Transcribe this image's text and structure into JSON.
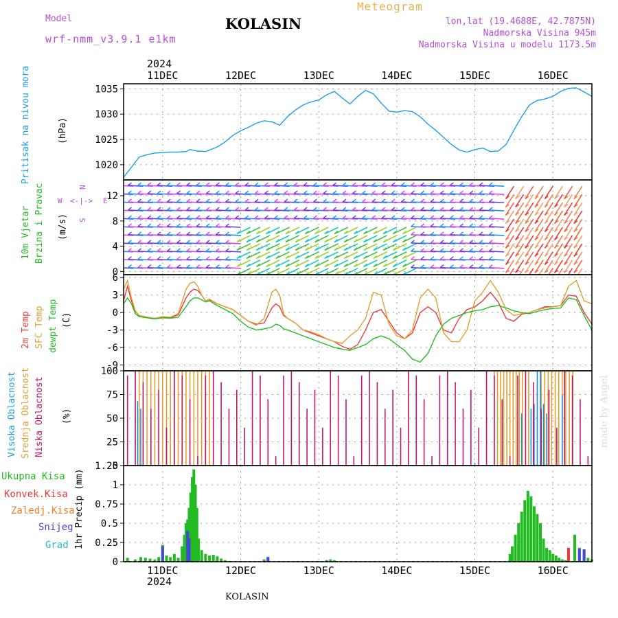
{
  "header": {
    "model_label": "Model",
    "model_name": "wrf-nmm_v3.9.1 e1km",
    "station": "KOLASIN",
    "meteogram": "Meteogram",
    "lonlat": "lon,lat (19.4688E, 42.7875N)",
    "elevation": "Nadmorska Visina 945m",
    "model_elevation": "Nadmorska Visina u modelu 1173.5m",
    "year_top": "2024",
    "year_bottom": "2024",
    "footer_station": "KOLASIN",
    "watermark": "made by Angel"
  },
  "colors": {
    "pressure": "#1aa0e8",
    "temp2m": "#e83a3a",
    "sfc": "#e0a030",
    "dew": "#22bb22",
    "high_cloud": "#1e8ee0",
    "mid_cloud": "#e0a030",
    "low_cloud": "#c0166e",
    "total_precip": "#22bb22",
    "conv_precip": "#e83a3a",
    "frozen": "#f08030",
    "snow": "#4646d8",
    "hail": "#22c0c0",
    "label_magenta": "#b44fd6"
  },
  "chart_data": [
    {
      "type": "line",
      "panel": "pressure",
      "ylabel": "Pritisak na nivou mora",
      "unit": "(hPa)",
      "x_days": [
        "11DEC",
        "12DEC",
        "13DEC",
        "14DEC",
        "15DEC",
        "16DEC"
      ],
      "xlim": [
        -0.5,
        5.5
      ],
      "ylim": [
        1017,
        1036
      ],
      "yticks": [
        1020,
        1025,
        1030,
        1035
      ],
      "grid": true,
      "x": [
        -0.5,
        -0.4,
        -0.3,
        -0.2,
        -0.1,
        0,
        0.1,
        0.2,
        0.3,
        0.35,
        0.45,
        0.55,
        0.7,
        0.8,
        0.9,
        1.0,
        1.1,
        1.2,
        1.3,
        1.4,
        1.5,
        1.6,
        1.7,
        1.8,
        1.9,
        2.0,
        2.1,
        2.2,
        2.3,
        2.4,
        2.5,
        2.6,
        2.7,
        2.8,
        2.9,
        3.0,
        3.1,
        3.2,
        3.3,
        3.4,
        3.5,
        3.6,
        3.7,
        3.8,
        3.9,
        4.0,
        4.1,
        4.2,
        4.3,
        4.4,
        4.5,
        4.6,
        4.7,
        4.8,
        4.9,
        5.0,
        5.1,
        5.2,
        5.3,
        5.4,
        5.5
      ],
      "values": [
        1017.5,
        1019.5,
        1021.5,
        1022.0,
        1022.3,
        1022.4,
        1022.5,
        1022.5,
        1022.6,
        1023.0,
        1022.7,
        1022.6,
        1023.5,
        1024.5,
        1025.8,
        1026.7,
        1027.4,
        1028.2,
        1028.7,
        1028.5,
        1027.8,
        1029.5,
        1030.8,
        1031.8,
        1032.4,
        1032.8,
        1033.8,
        1034.5,
        1033.2,
        1032.0,
        1033.5,
        1034.7,
        1034.0,
        1032.2,
        1030.6,
        1030.4,
        1030.7,
        1030.5,
        1029.5,
        1028.0,
        1026.8,
        1025.4,
        1024.0,
        1022.9,
        1022.5,
        1023.0,
        1023.3,
        1022.6,
        1022.7,
        1024.0,
        1026.8,
        1029.5,
        1031.8,
        1032.7,
        1033.0,
        1033.5,
        1034.5,
        1035.1,
        1035.2,
        1034.4,
        1033.5
      ]
    },
    {
      "type": "scatter",
      "panel": "wind",
      "ylabel_1": "10m Vjetar",
      "ylabel_2": "Brzina i Pravac",
      "unit": "(m/s)",
      "compass_north": "N",
      "compass_west": "W",
      "compass_east": "E",
      "compass_south": "S",
      "ylim": [
        -0.5,
        14.5
      ],
      "yticks": [
        0,
        4,
        8,
        12
      ],
      "grid": true
    },
    {
      "type": "line",
      "panel": "temperature",
      "ylabel_t2m": "2m Temp",
      "ylabel_sfc": "SFC Temp",
      "ylabel_dew": "dewpt Temp",
      "unit": "(C)",
      "ylim": [
        -10,
        6.5
      ],
      "yticks": [
        -9,
        -6,
        -3,
        0,
        3,
        6
      ],
      "grid": true,
      "x": [
        -0.5,
        -0.45,
        -0.4,
        -0.35,
        -0.3,
        -0.2,
        -0.1,
        0,
        0.1,
        0.2,
        0.3,
        0.35,
        0.4,
        0.45,
        0.5,
        0.55,
        0.6,
        0.7,
        0.8,
        0.9,
        1.0,
        1.1,
        1.2,
        1.3,
        1.4,
        1.45,
        1.5,
        1.55,
        1.6,
        1.7,
        1.8,
        1.9,
        2.0,
        2.1,
        2.2,
        2.3,
        2.4,
        2.5,
        2.6,
        2.7,
        2.8,
        2.9,
        3.0,
        3.1,
        3.2,
        3.3,
        3.4,
        3.5,
        3.6,
        3.7,
        3.8,
        3.9,
        4.0,
        4.1,
        4.2,
        4.3,
        4.4,
        4.5,
        4.6,
        4.7,
        4.8,
        4.9,
        5.0,
        5.1,
        5.2,
        5.3,
        5.4,
        5.5
      ],
      "series": [
        {
          "name": "2m Temp",
          "values": [
            2.0,
            4.5,
            2.0,
            0.2,
            -0.5,
            -0.8,
            -1.0,
            -0.8,
            -0.9,
            -0.4,
            2.5,
            3.5,
            4.0,
            3.8,
            3.0,
            2.0,
            2.2,
            1.5,
            1.0,
            0.5,
            -0.5,
            -1.5,
            -2.0,
            -1.8,
            0.8,
            1.5,
            1.0,
            -0.5,
            -1.0,
            -1.8,
            -3.0,
            -3.5,
            -4.0,
            -4.5,
            -5.0,
            -5.8,
            -6.3,
            -5.5,
            -3.0,
            0.0,
            0.5,
            -1.5,
            -3.5,
            -4.5,
            -3.5,
            0.0,
            1.0,
            0.0,
            -3.0,
            -3.5,
            -1.0,
            0.5,
            1.0,
            2.0,
            3.5,
            1.8,
            -1.0,
            -1.5,
            -0.3,
            0.0,
            0.5,
            1.0,
            1.0,
            1.2,
            3.0,
            2.8,
            0.0,
            -2.0
          ]
        },
        {
          "name": "SFC Temp",
          "values": [
            4.0,
            5.5,
            2.5,
            0.3,
            -0.5,
            -0.8,
            -1.0,
            -0.7,
            -0.8,
            -0.2,
            4.0,
            5.0,
            5.3,
            4.5,
            3.0,
            2.0,
            2.3,
            1.5,
            1.0,
            0.5,
            -0.5,
            -1.5,
            -2.2,
            -1.0,
            3.5,
            4.0,
            3.0,
            -0.3,
            -1.0,
            -1.8,
            -3.0,
            -3.3,
            -3.8,
            -4.5,
            -5.0,
            -5.3,
            -4.0,
            -3.0,
            -1.0,
            3.5,
            3.0,
            -2.0,
            -4.0,
            -4.5,
            -3.0,
            2.5,
            4.0,
            2.5,
            -3.5,
            -5.0,
            -5.0,
            -3.0,
            2.0,
            3.5,
            5.5,
            3.5,
            0.5,
            -0.5,
            -0.2,
            0.0,
            0.5,
            0.8,
            1.0,
            1.2,
            4.5,
            5.5,
            2.0,
            1.5
          ]
        },
        {
          "name": "dewpt Temp",
          "values": [
            1.5,
            2.5,
            1.5,
            -0.2,
            -0.7,
            -0.9,
            -1.1,
            -0.9,
            -1.0,
            -0.8,
            1.0,
            2.0,
            2.5,
            2.5,
            2.2,
            1.8,
            2.0,
            1.2,
            0.5,
            -0.2,
            -1.5,
            -2.5,
            -3.0,
            -2.8,
            -2.5,
            -2.0,
            -2.2,
            -2.8,
            -3.0,
            -3.5,
            -4.0,
            -4.5,
            -5.0,
            -5.5,
            -6.0,
            -6.3,
            -6.5,
            -6.0,
            -5.5,
            -4.5,
            -4.0,
            -4.5,
            -5.5,
            -6.5,
            -8.0,
            -8.5,
            -7.0,
            -4.0,
            -2.0,
            -1.0,
            -0.5,
            0.0,
            0.3,
            0.5,
            1.0,
            1.2,
            0.8,
            0.3,
            0.0,
            -0.2,
            0.2,
            0.5,
            0.7,
            0.8,
            2.5,
            2.2,
            -0.5,
            -3.0
          ]
        }
      ]
    },
    {
      "type": "bar",
      "panel": "clouds",
      "ylabel_high": "Visoka Oblacnost",
      "ylabel_mid": "Srednja Oblacnost",
      "ylabel_low": "Niska Oblacnost",
      "unit": "(%)",
      "ylim": [
        0,
        100
      ],
      "yticks": [
        0,
        25,
        50,
        75,
        100
      ],
      "grid": true
    },
    {
      "type": "bar",
      "panel": "precip",
      "legend": [
        "Ukupna Kisa",
        "Konvek.Kisa",
        "Zaledj.Kisa",
        "Snijeg",
        "Grad"
      ],
      "unit": "1hr Precip (mm)",
      "ylim": [
        0,
        1.25
      ],
      "yticks": [
        0,
        0.25,
        0.5,
        0.75,
        1,
        1.25
      ],
      "ytick_labels": [
        "0",
        "0.25",
        "0.5",
        "0.75",
        "1",
        "1.25"
      ],
      "grid": true,
      "x": [
        -0.45,
        -0.35,
        -0.28,
        -0.22,
        -0.16,
        -0.1,
        -0.05,
        0,
        0.05,
        0.1,
        0.15,
        0.2,
        0.25,
        0.28,
        0.3,
        0.32,
        0.34,
        0.36,
        0.38,
        0.4,
        0.42,
        0.44,
        0.46,
        0.5,
        0.55,
        0.6,
        0.65,
        0.7,
        0.75,
        0.8,
        0.85,
        1.3,
        1.35,
        2.1,
        2.15,
        2.2,
        4.45,
        4.48,
        4.52,
        4.56,
        4.6,
        4.64,
        4.68,
        4.72,
        4.76,
        4.8,
        4.84,
        4.88,
        4.92,
        4.96,
        5.0,
        5.04,
        5.08,
        5.12,
        5.16,
        5.2,
        5.28,
        5.34,
        5.4,
        5.45,
        5.5
      ],
      "values": [
        0.05,
        0.03,
        0.06,
        0.05,
        0.04,
        0.03,
        0.06,
        0.22,
        0.08,
        0.06,
        0.1,
        0.05,
        0.2,
        0.35,
        0.5,
        0.55,
        0.7,
        0.9,
        1.1,
        1.2,
        1.0,
        0.7,
        0.3,
        0.15,
        0.1,
        0.08,
        0.09,
        0.07,
        0.04,
        0.02,
        0.01,
        0.03,
        0.06,
        0.02,
        0.03,
        0.02,
        0.1,
        0.2,
        0.35,
        0.5,
        0.65,
        0.8,
        0.92,
        0.85,
        0.72,
        0.62,
        0.5,
        0.3,
        0.18,
        0.15,
        0.1,
        0.08,
        0.05,
        0.03,
        0.02,
        0.12,
        0.35,
        0.18,
        0.16,
        0.05,
        0.03
      ]
    }
  ]
}
